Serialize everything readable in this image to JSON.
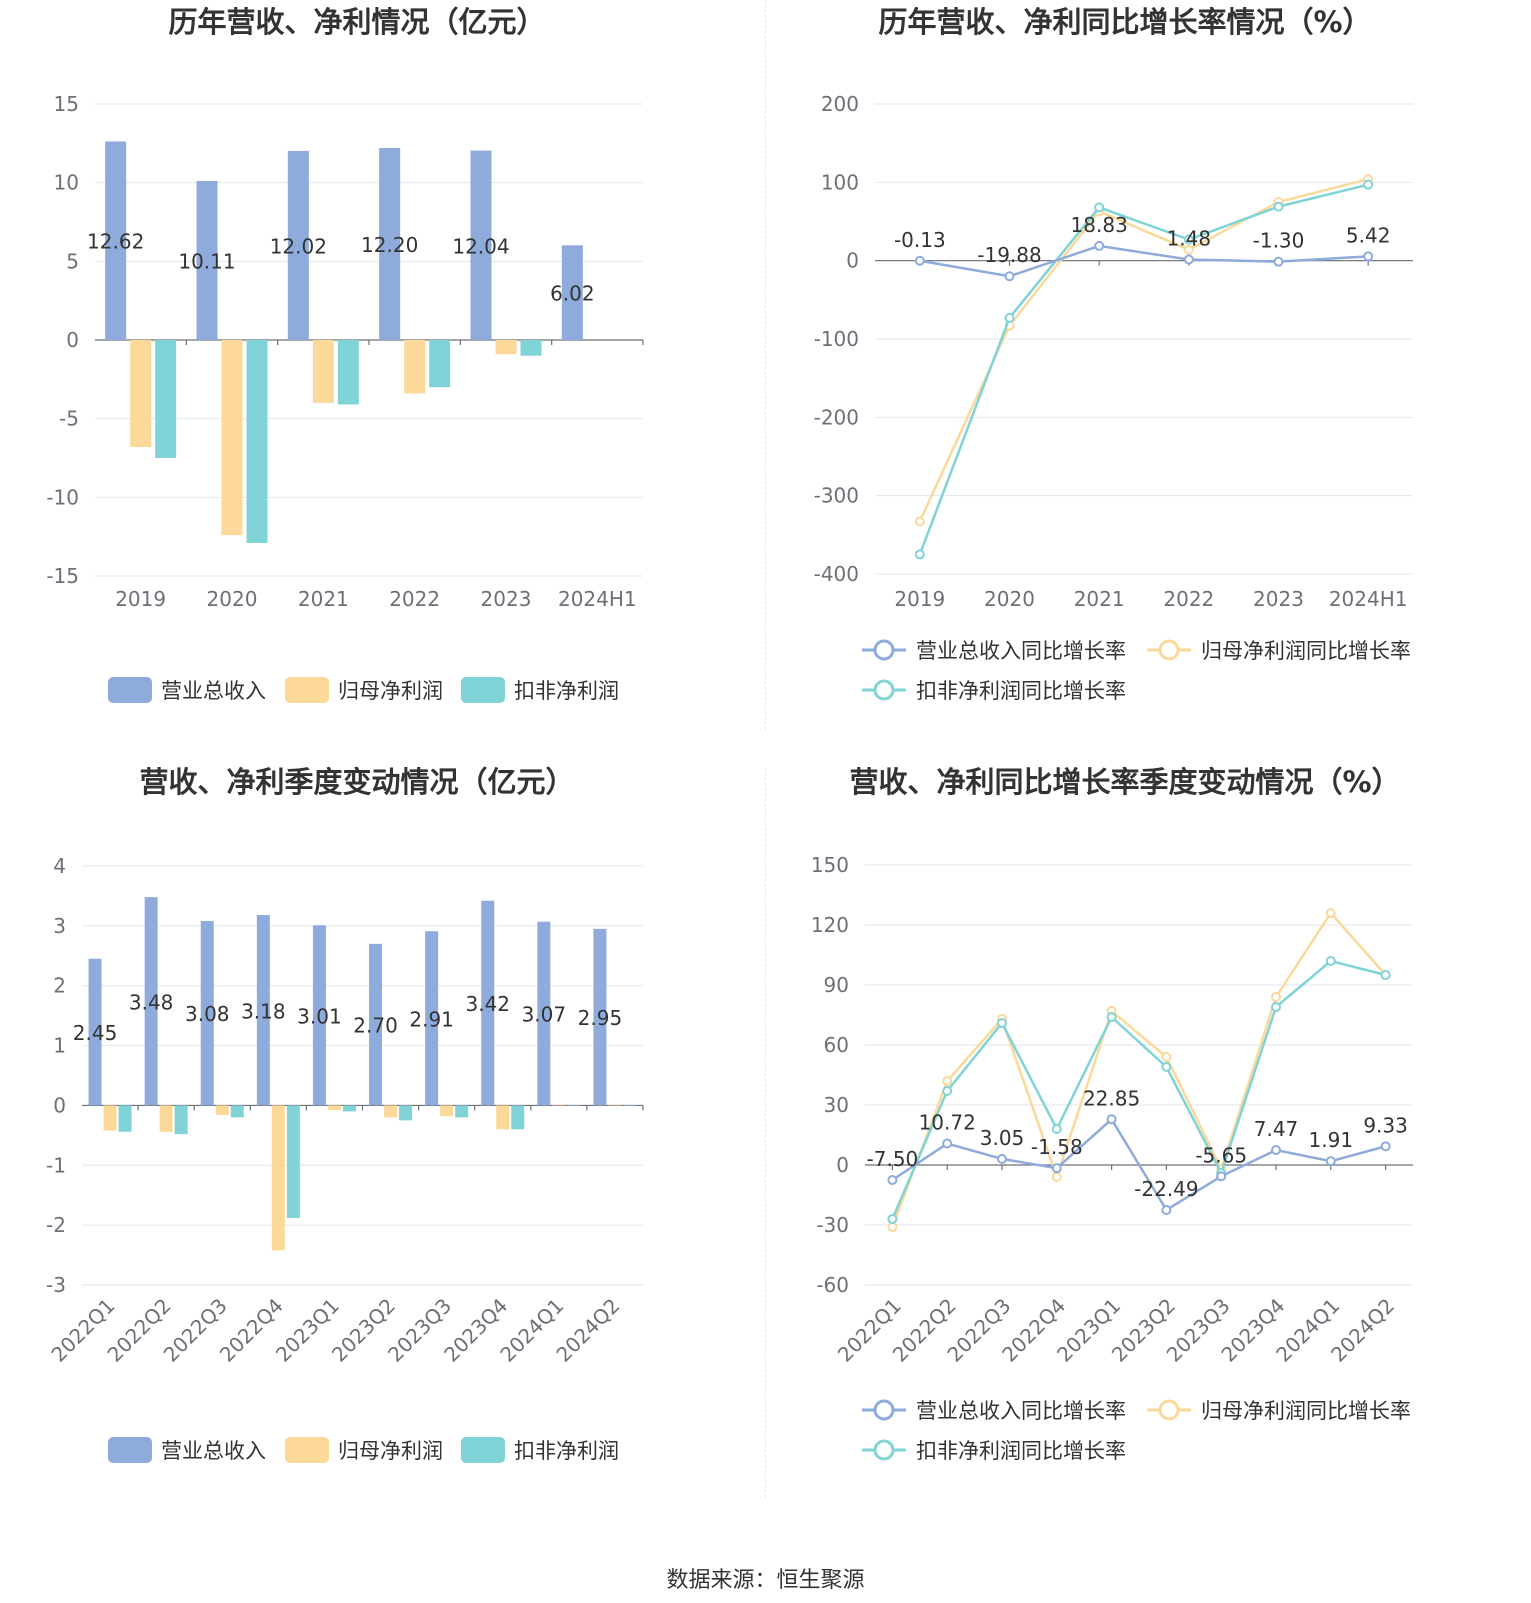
{
  "colors": {
    "revenue": "#8eabdc",
    "parent_profit": "#fcd899",
    "deducted_profit": "#80d3d6"
  },
  "legend": {
    "bar": [
      "营业总收入",
      "归母净利润",
      "扣非净利润"
    ],
    "line": [
      "营业总收入同比增长率",
      "归母净利润同比增长率",
      "扣非净利润同比增长率"
    ]
  },
  "source": "数据来源：恒生聚源",
  "chart_data": [
    {
      "type": "bar",
      "title": "历年营收、净利情况（亿元）",
      "categories": [
        "2019",
        "2020",
        "2021",
        "2022",
        "2023",
        "2024H1"
      ],
      "ylim": [
        -15,
        15
      ],
      "yticks": [
        15,
        10,
        5,
        0,
        -5,
        -10,
        -15
      ],
      "grid": true,
      "legend_position": "bottom",
      "series": [
        {
          "name": "营业总收入",
          "values": [
            12.62,
            10.11,
            12.02,
            12.2,
            12.04,
            6.02
          ],
          "labels": [
            "12.62",
            "10.11",
            "12.02",
            "12.20",
            "12.04",
            "6.02"
          ]
        },
        {
          "name": "归母净利润",
          "values": [
            -6.8,
            -12.4,
            -4.0,
            -3.4,
            -0.9,
            null
          ]
        },
        {
          "name": "扣非净利润",
          "values": [
            -7.5,
            -12.9,
            -4.1,
            -3.0,
            -1.0,
            null
          ]
        }
      ]
    },
    {
      "type": "line",
      "title": "历年营收、净利同比增长率情况（%）",
      "categories": [
        "2019",
        "2020",
        "2021",
        "2022",
        "2023",
        "2024H1"
      ],
      "ylim": [
        -400,
        200
      ],
      "yticks": [
        200,
        100,
        0,
        -100,
        -200,
        -300,
        -400
      ],
      "grid": true,
      "legend_position": "bottom",
      "series": [
        {
          "name": "营业总收入同比增长率",
          "values": [
            -0.13,
            -19.88,
            18.83,
            1.48,
            -1.3,
            5.42
          ],
          "labels": [
            "-0.13",
            "-19.88",
            "18.83",
            "1.48",
            "-1.30",
            "5.42"
          ]
        },
        {
          "name": "归母净利润同比增长率",
          "values": [
            -333,
            -83,
            63,
            14,
            75,
            104
          ]
        },
        {
          "name": "扣非净利润同比增长率",
          "values": [
            -375,
            -73,
            68,
            27,
            69,
            97
          ]
        }
      ]
    },
    {
      "type": "bar",
      "title": "营收、净利季度变动情况（亿元）",
      "categories": [
        "2022Q1",
        "2022Q2",
        "2022Q3",
        "2022Q4",
        "2023Q1",
        "2023Q2",
        "2023Q3",
        "2023Q4",
        "2024Q1",
        "2024Q2"
      ],
      "ylim": [
        -3,
        4
      ],
      "yticks": [
        4,
        3,
        2,
        1,
        0,
        -1,
        -2,
        -3
      ],
      "grid": true,
      "legend_position": "bottom",
      "series": [
        {
          "name": "营业总收入",
          "values": [
            2.45,
            3.48,
            3.08,
            3.18,
            3.01,
            2.7,
            2.91,
            3.42,
            3.07,
            2.95
          ],
          "labels": [
            "2.45",
            "3.48",
            "3.08",
            "3.18",
            "3.01",
            "2.70",
            "2.91",
            "3.42",
            "3.07",
            "2.95"
          ]
        },
        {
          "name": "归母净利润",
          "values": [
            -0.42,
            -0.44,
            -0.16,
            -2.42,
            -0.08,
            -0.2,
            -0.18,
            -0.4,
            0.01,
            0.01
          ]
        },
        {
          "name": "扣非净利润",
          "values": [
            -0.44,
            -0.48,
            -0.2,
            -1.88,
            -0.1,
            -0.25,
            -0.2,
            -0.4,
            0.0,
            0.0
          ]
        }
      ]
    },
    {
      "type": "line",
      "title": "营收、净利同比增长率季度变动情况（%）",
      "categories": [
        "2022Q1",
        "2022Q2",
        "2022Q3",
        "2022Q4",
        "2023Q1",
        "2023Q2",
        "2023Q3",
        "2023Q4",
        "2024Q1",
        "2024Q2"
      ],
      "ylim": [
        -60,
        150
      ],
      "yticks": [
        150,
        120,
        90,
        60,
        30,
        0,
        -30,
        -60
      ],
      "grid": true,
      "legend_position": "bottom",
      "series": [
        {
          "name": "营业总收入同比增长率",
          "values": [
            -7.5,
            10.72,
            3.05,
            -1.58,
            22.85,
            -22.49,
            -5.65,
            7.47,
            1.91,
            9.33
          ],
          "labels": [
            "-7.50",
            "10.72",
            "3.05",
            "-1.58",
            "22.85",
            "-22.49",
            "-5.65",
            "7.47",
            "1.91",
            "9.33"
          ]
        },
        {
          "name": "归母净利润同比增长率",
          "values": [
            -31,
            42,
            73,
            -6,
            77,
            54,
            -2,
            84,
            126,
            95
          ]
        },
        {
          "name": "扣非净利润同比增长率",
          "values": [
            -27,
            37,
            71,
            18,
            74,
            49,
            -4,
            79,
            102,
            95
          ]
        }
      ]
    }
  ]
}
